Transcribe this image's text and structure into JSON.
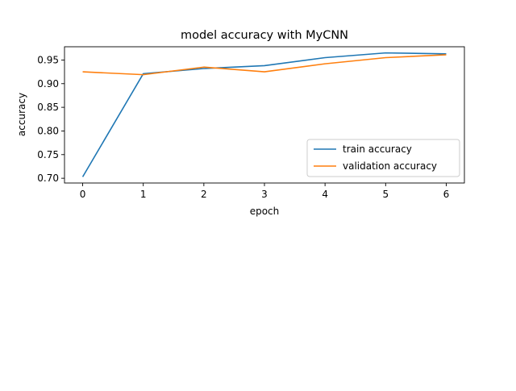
{
  "chart_data": {
    "type": "line",
    "title": "model accuracy with MyCNN",
    "xlabel": "epoch",
    "ylabel": "accuracy",
    "x": [
      0,
      1,
      2,
      3,
      4,
      5,
      6
    ],
    "xlim": [
      -0.3,
      6.3
    ],
    "ylim": [
      0.69,
      0.978
    ],
    "xticks": [
      "0",
      "1",
      "2",
      "3",
      "4",
      "5",
      "6"
    ],
    "yticks": [
      "0.70",
      "0.75",
      "0.80",
      "0.85",
      "0.90",
      "0.95"
    ],
    "grid": false,
    "legend_position": "lower right",
    "series": [
      {
        "name": "train accuracy",
        "color": "#1f77b4",
        "values": [
          0.703,
          0.921,
          0.932,
          0.938,
          0.955,
          0.965,
          0.963
        ]
      },
      {
        "name": "validation accuracy",
        "color": "#ff7f0e",
        "values": [
          0.925,
          0.919,
          0.935,
          0.925,
          0.942,
          0.955,
          0.961
        ]
      }
    ]
  }
}
